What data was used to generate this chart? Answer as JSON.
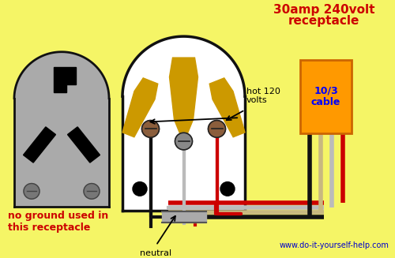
{
  "bg_color": "#f5f566",
  "title_line1": "30amp 240volt",
  "title_line2": "receptacle",
  "title_color": "#cc0000",
  "title_fontsize": 11,
  "subtitle": "no ground used in\nthis receptacle",
  "subtitle_color": "#cc0000",
  "subtitle_fontsize": 9,
  "website": "www.do-it-yourself-help.com",
  "website_color": "#0000cc",
  "website_fontsize": 7,
  "cable_label": "10/3\ncable",
  "cable_color": "#ff9900",
  "cable_text_color": "#0000ff",
  "hot_label": "hot 120\nvolts",
  "neutral_label": "neutral",
  "wire_black": "#111111",
  "wire_red": "#cc0000",
  "wire_white": "#bbbbbb",
  "wire_tan": "#c8b880",
  "wire_lw": 3,
  "terminal_brown": "#8B5e3c",
  "terminal_gray": "#888888",
  "outlet_body_color": "#ffffff",
  "outlet_border_color": "#111111",
  "plug_body_color": "#aaaaaa",
  "plug_border_color": "#111111",
  "blade_color": "#cc9900",
  "screw_color": "#777777"
}
